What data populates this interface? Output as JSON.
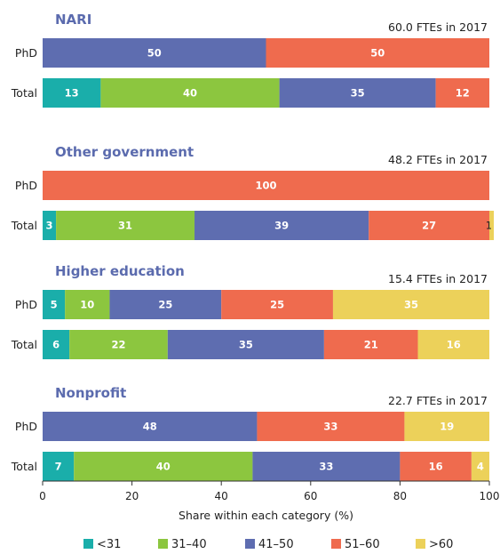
{
  "chart_data": {
    "type": "bar",
    "orientation": "horizontal",
    "stacked": true,
    "xlabel": "Share within each category (%)",
    "xlim": [
      0,
      100
    ],
    "xticks": [
      "0",
      "20",
      "40",
      "60",
      "80",
      "100"
    ],
    "legend_placement": "bottom",
    "legend": [
      {
        "label": "<31",
        "color": "#1aaeaa"
      },
      {
        "label": "31–40",
        "color": "#8cc63f"
      },
      {
        "label": "41–50",
        "color": "#5e6db0"
      },
      {
        "label": "51–60",
        "color": "#ef6b4e"
      },
      {
        "label": ">60",
        "color": "#ecd15a"
      }
    ],
    "panels": [
      {
        "title": "NARI",
        "note": "60.0 FTEs in 2017",
        "rows": [
          {
            "label": "PhD",
            "values": [
              0,
              0,
              50,
              50,
              0
            ],
            "labels": [
              "",
              "",
              "50",
              "50",
              ""
            ]
          },
          {
            "label": "Total",
            "values": [
              13,
              40,
              35,
              12,
              0
            ],
            "labels": [
              "13",
              "40",
              "35",
              "12",
              ""
            ]
          }
        ]
      },
      {
        "title": "Other government",
        "note": "48.2 FTEs in 2017",
        "rows": [
          {
            "label": "PhD",
            "values": [
              0,
              0,
              0,
              100,
              0
            ],
            "labels": [
              "",
              "",
              "",
              "100",
              ""
            ]
          },
          {
            "label": "Total",
            "values": [
              3,
              31,
              39,
              27,
              1
            ],
            "labels": [
              "3",
              "31",
              "39",
              "27",
              "1"
            ]
          }
        ]
      },
      {
        "title": "Higher education",
        "note": "15.4 FTEs in 2017",
        "rows": [
          {
            "label": "PhD",
            "values": [
              5,
              10,
              25,
              25,
              35
            ],
            "labels": [
              "5",
              "10",
              "25",
              "25",
              "35"
            ]
          },
          {
            "label": "Total",
            "values": [
              6,
              22,
              35,
              21,
              16
            ],
            "labels": [
              "6",
              "22",
              "35",
              "21",
              "16"
            ]
          }
        ]
      },
      {
        "title": "Nonprofit",
        "note": "22.7 FTEs in 2017",
        "rows": [
          {
            "label": "PhD",
            "values": [
              0,
              0,
              48,
              33,
              19
            ],
            "labels": [
              "",
              "",
              "48",
              "33",
              "19"
            ]
          },
          {
            "label": "Total",
            "values": [
              7,
              40,
              33,
              16,
              4
            ],
            "labels": [
              "7",
              "40",
              "33",
              "16",
              "4"
            ]
          }
        ]
      }
    ]
  }
}
